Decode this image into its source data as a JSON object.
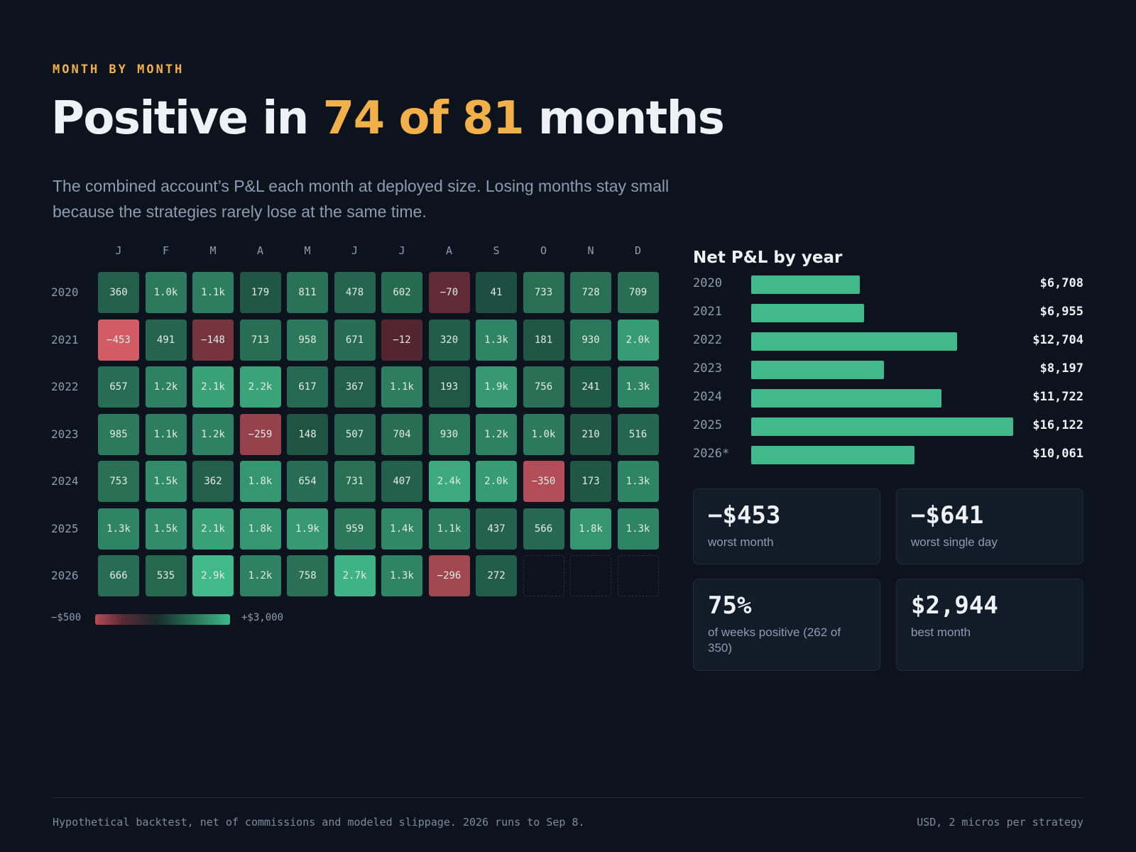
{
  "eyebrow": "MONTH BY MONTH",
  "headline": {
    "pre": "Positive in ",
    "highlight": "74 of 81",
    "post": " months"
  },
  "lede": "The combined account’s P&L each month at deployed size. Losing months stay small because the strategies rarely lose at the same time.",
  "colors": {
    "accent": "#f2b04a",
    "positive": "#41b98a",
    "negative": "#e0626b",
    "background": "#0d131d"
  },
  "chart_data": [
    {
      "type": "heatmap",
      "title": "",
      "x_labels": [
        "J",
        "F",
        "M",
        "A",
        "M",
        "J",
        "J",
        "A",
        "S",
        "O",
        "N",
        "D"
      ],
      "y_labels": [
        "2020",
        "2021",
        "2022",
        "2023",
        "2024",
        "2025",
        "2026"
      ],
      "values": [
        [
          360,
          1000,
          1100,
          179,
          811,
          478,
          602,
          -70,
          41,
          733,
          728,
          709
        ],
        [
          -453,
          491,
          -148,
          713,
          958,
          671,
          -12,
          320,
          1300,
          181,
          930,
          2000
        ],
        [
          657,
          1200,
          2100,
          2200,
          617,
          367,
          1100,
          193,
          1900,
          756,
          241,
          1300
        ],
        [
          985,
          1100,
          1200,
          -259,
          148,
          507,
          704,
          930,
          1200,
          1000,
          210,
          516
        ],
        [
          753,
          1500,
          362,
          1800,
          654,
          731,
          407,
          2400,
          2000,
          -350,
          173,
          1300
        ],
        [
          1300,
          1500,
          2100,
          1800,
          1900,
          959,
          1400,
          1100,
          437,
          566,
          1800,
          1300
        ],
        [
          666,
          535,
          2900,
          1200,
          758,
          2700,
          1300,
          -296,
          272,
          null,
          null,
          null
        ]
      ],
      "cell_labels": [
        [
          "360",
          "1.0k",
          "1.1k",
          "179",
          "811",
          "478",
          "602",
          "−70",
          "41",
          "733",
          "728",
          "709"
        ],
        [
          "−453",
          "491",
          "−148",
          "713",
          "958",
          "671",
          "−12",
          "320",
          "1.3k",
          "181",
          "930",
          "2.0k"
        ],
        [
          "657",
          "1.2k",
          "2.1k",
          "2.2k",
          "617",
          "367",
          "1.1k",
          "193",
          "1.9k",
          "756",
          "241",
          "1.3k"
        ],
        [
          "985",
          "1.1k",
          "1.2k",
          "−259",
          "148",
          "507",
          "704",
          "930",
          "1.2k",
          "1.0k",
          "210",
          "516"
        ],
        [
          "753",
          "1.5k",
          "362",
          "1.8k",
          "654",
          "731",
          "407",
          "2.4k",
          "2.0k",
          "−350",
          "173",
          "1.3k"
        ],
        [
          "1.3k",
          "1.5k",
          "2.1k",
          "1.8k",
          "1.9k",
          "959",
          "1.4k",
          "1.1k",
          "437",
          "566",
          "1.8k",
          "1.3k"
        ],
        [
          "666",
          "535",
          "2.9k",
          "1.2k",
          "758",
          "2.7k",
          "1.3k",
          "−296",
          "272",
          "",
          "",
          ""
        ]
      ],
      "color_scale": {
        "min": -500,
        "max": 3000,
        "min_label": "−$500",
        "max_label": "+$3,000"
      }
    },
    {
      "type": "bar",
      "orientation": "horizontal",
      "title": "Net P&L by year",
      "categories": [
        "2020",
        "2021",
        "2022",
        "2023",
        "2024",
        "2025",
        "2026*"
      ],
      "values": [
        6708,
        6955,
        12704,
        8197,
        11722,
        16122,
        10061
      ],
      "value_labels": [
        "$6,708",
        "$6,955",
        "$12,704",
        "$8,197",
        "$11,722",
        "$16,122",
        "$10,061"
      ],
      "xlim": [
        0,
        17500
      ]
    }
  ],
  "stats": [
    {
      "value": "−$453",
      "label": "worst month"
    },
    {
      "value": "−$641",
      "label": "worst single day"
    },
    {
      "value": "75%",
      "label": "of weeks positive (262 of 350)"
    },
    {
      "value": "$2,944",
      "label": "best month"
    }
  ],
  "footer": {
    "left": "Hypothetical backtest, net of commissions and modeled slippage. 2026 runs to Sep 8.",
    "right": "USD, 2 micros per strategy"
  }
}
